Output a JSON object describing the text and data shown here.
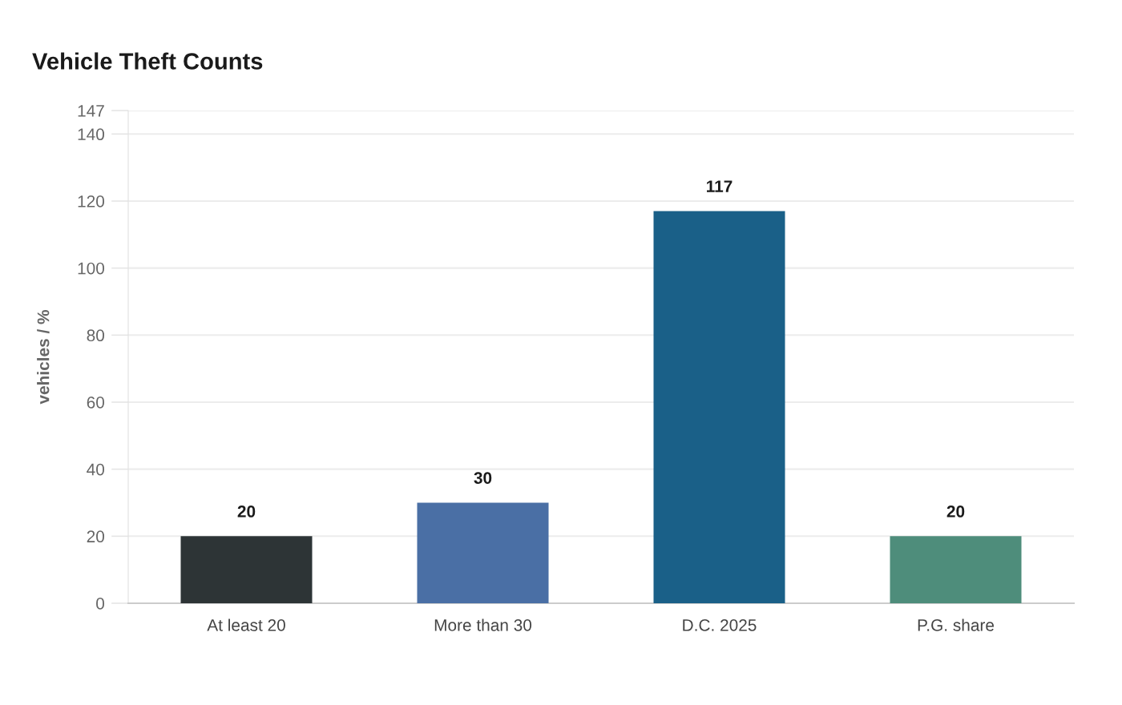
{
  "chart_data": {
    "type": "bar",
    "title": "Vehicle Theft Counts",
    "ylabel": "vehicles / %",
    "categories": [
      "At least 20",
      "More than 30",
      "D.C. 2025",
      "P.G. share"
    ],
    "values": [
      20,
      30,
      117,
      20
    ],
    "colors": [
      "#2d3436",
      "#4a6fa5",
      "#1a6088",
      "#4e8d7b"
    ],
    "ylim": [
      0,
      147
    ],
    "yticks": [
      0,
      20,
      40,
      60,
      80,
      100,
      120,
      140,
      147
    ],
    "grid": "y",
    "data_labels": true,
    "legend": false
  }
}
